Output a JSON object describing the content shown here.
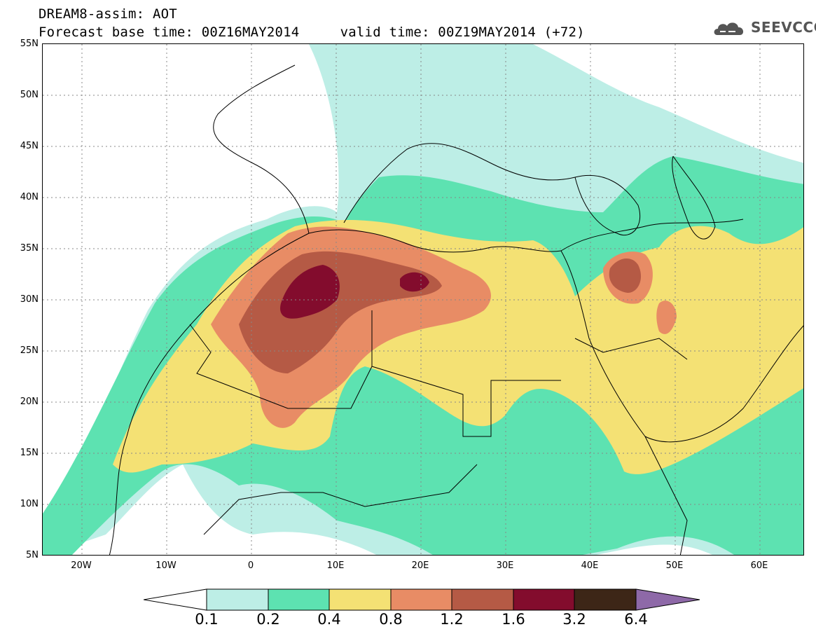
{
  "title_line1": "DREAM8-assim: AOT",
  "title_line2": "Forecast base time: 00Z16MAY2014     valid time: 00Z19MAY2014 (+72)",
  "logo_text": "SEEVCCC",
  "lat_labels": [
    "55N",
    "50N",
    "45N",
    "40N",
    "35N",
    "30N",
    "25N",
    "20N",
    "15N",
    "10N",
    "5N"
  ],
  "lon_labels": [
    "20W",
    "10W",
    "0",
    "10E",
    "20E",
    "30E",
    "40E",
    "50E",
    "60E"
  ],
  "colorbar": {
    "colors": [
      "#ffffff",
      "#bdeee6",
      "#5de2b1",
      "#f4e174",
      "#e88c65",
      "#b55a45",
      "#830c2d",
      "#3d2617",
      "#8e69a8"
    ],
    "labels": [
      "0.1",
      "0.2",
      "0.4",
      "0.8",
      "1.2",
      "1.6",
      "3.2",
      "6.4"
    ]
  }
}
